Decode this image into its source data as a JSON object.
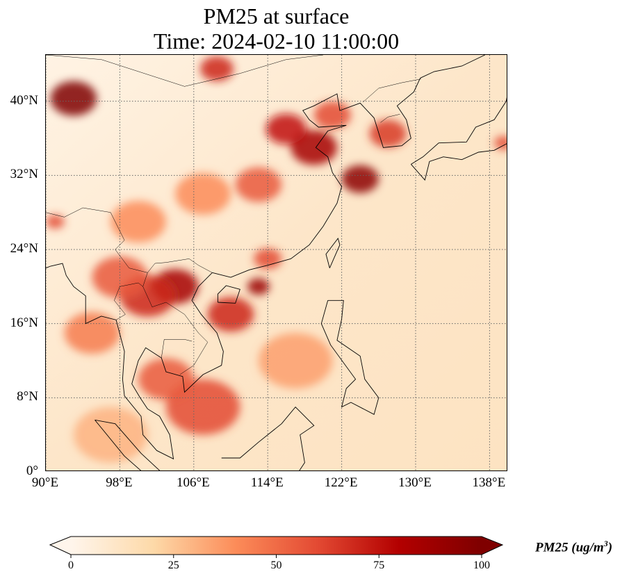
{
  "title": {
    "line1": "PM25 at surface",
    "line2": "Time: 2024-02-10 11:00:00"
  },
  "map": {
    "extent": {
      "lon": [
        90,
        140
      ],
      "lat": [
        0,
        45
      ]
    },
    "lon_ticks": [
      {
        "value": 90,
        "label": "90°E"
      },
      {
        "value": 98,
        "label": "98°E"
      },
      {
        "value": 106,
        "label": "106°E"
      },
      {
        "value": 114,
        "label": "114°E"
      },
      {
        "value": 122,
        "label": "122°E"
      },
      {
        "value": 130,
        "label": "130°E"
      },
      {
        "value": 138,
        "label": "138°E"
      }
    ],
    "lat_ticks": [
      {
        "value": 0,
        "label": "0°"
      },
      {
        "value": 8,
        "label": "8°N"
      },
      {
        "value": 16,
        "label": "16°N"
      },
      {
        "value": 24,
        "label": "24°N"
      },
      {
        "value": 32,
        "label": "32°N"
      },
      {
        "value": 40,
        "label": "40°N"
      }
    ],
    "hotspots": [
      {
        "lon": 93,
        "lat": 40.3,
        "v": 100,
        "r": 2.5
      },
      {
        "lon": 108.5,
        "lat": 43.5,
        "v": 70,
        "r": 1.8
      },
      {
        "lon": 119,
        "lat": 35,
        "v": 85,
        "r": 2.5
      },
      {
        "lon": 116,
        "lat": 37,
        "v": 75,
        "r": 2.2
      },
      {
        "lon": 124,
        "lat": 31.6,
        "v": 95,
        "r": 2
      },
      {
        "lon": 121,
        "lat": 38.5,
        "v": 60,
        "r": 2
      },
      {
        "lon": 127,
        "lat": 36.5,
        "v": 65,
        "r": 2
      },
      {
        "lon": 113,
        "lat": 31,
        "v": 55,
        "r": 2.5
      },
      {
        "lon": 104,
        "lat": 20,
        "v": 85,
        "r": 2.5
      },
      {
        "lon": 101,
        "lat": 19,
        "v": 70,
        "r": 3
      },
      {
        "lon": 98,
        "lat": 21,
        "v": 55,
        "r": 3
      },
      {
        "lon": 113,
        "lat": 20,
        "v": 90,
        "r": 1.2
      },
      {
        "lon": 110,
        "lat": 17,
        "v": 70,
        "r": 2.5
      },
      {
        "lon": 107,
        "lat": 7,
        "v": 60,
        "r": 4
      },
      {
        "lon": 103,
        "lat": 10,
        "v": 55,
        "r": 3
      },
      {
        "lon": 95,
        "lat": 15,
        "v": 45,
        "r": 3
      },
      {
        "lon": 107,
        "lat": 30,
        "v": 40,
        "r": 3
      },
      {
        "lon": 100,
        "lat": 27,
        "v": 40,
        "r": 3
      },
      {
        "lon": 91,
        "lat": 27,
        "v": 60,
        "r": 1
      },
      {
        "lon": 139.5,
        "lat": 35.5,
        "v": 60,
        "r": 1
      },
      {
        "lon": 114,
        "lat": 23,
        "v": 60,
        "r": 1.5
      },
      {
        "lon": 117,
        "lat": 12,
        "v": 35,
        "r": 4
      },
      {
        "lon": 97,
        "lat": 4,
        "v": 30,
        "r": 4
      }
    ],
    "coastlines": [
      [
        [
          108,
          21.5
        ],
        [
          110,
          21
        ],
        [
          112,
          21.8
        ],
        [
          114,
          22.3
        ],
        [
          116.5,
          23
        ],
        [
          118.5,
          24.5
        ],
        [
          120,
          26.5
        ],
        [
          121.5,
          29
        ],
        [
          122,
          30.8
        ],
        [
          121,
          32.3
        ],
        [
          120.5,
          34
        ],
        [
          119.2,
          35
        ],
        [
          120.5,
          36.8
        ],
        [
          122.5,
          37.4
        ],
        [
          119.5,
          37.2
        ],
        [
          118.5,
          38
        ],
        [
          117.8,
          39
        ],
        [
          119,
          39.5
        ],
        [
          121.5,
          40.8
        ],
        [
          121.8,
          39
        ],
        [
          124,
          39.8
        ],
        [
          125.5,
          38.2
        ],
        [
          126.5,
          35
        ],
        [
          128.5,
          35.2
        ],
        [
          129.5,
          36
        ],
        [
          129,
          38
        ],
        [
          128,
          39.5
        ],
        [
          129.8,
          41
        ],
        [
          130.5,
          42.5
        ]
      ],
      [
        [
          108,
          21.5
        ],
        [
          106.5,
          20
        ],
        [
          105.8,
          18.5
        ],
        [
          106.8,
          17
        ],
        [
          108.5,
          15
        ],
        [
          109.2,
          13
        ],
        [
          109,
          11.5
        ],
        [
          107,
          10.5
        ],
        [
          105,
          8.6
        ],
        [
          104.8,
          10.3
        ],
        [
          103,
          10.8
        ],
        [
          102.5,
          12.3
        ],
        [
          100.8,
          13.4
        ],
        [
          100,
          12
        ],
        [
          99.3,
          9.5
        ],
        [
          100.2,
          8
        ],
        [
          101,
          6.8
        ],
        [
          102.3,
          6
        ],
        [
          103.4,
          4
        ],
        [
          103.8,
          1.4
        ],
        [
          102,
          2.3
        ],
        [
          100.5,
          4
        ],
        [
          100.3,
          6
        ],
        [
          98.5,
          8.2
        ],
        [
          98.3,
          10
        ],
        [
          98.5,
          13
        ],
        [
          97.6,
          16.4
        ],
        [
          96,
          16.8
        ],
        [
          94.3,
          16
        ],
        [
          94.3,
          19
        ],
        [
          93,
          20
        ],
        [
          92.2,
          21.2
        ],
        [
          91.8,
          22.5
        ],
        [
          90.5,
          22.2
        ],
        [
          90,
          22
        ]
      ],
      [
        [
          120.7,
          22
        ],
        [
          121.8,
          24.5
        ],
        [
          121.6,
          25.2
        ],
        [
          120.3,
          23.5
        ],
        [
          120.7,
          22
        ]
      ],
      [
        [
          108.6,
          18.3
        ],
        [
          110.5,
          18.2
        ],
        [
          111,
          19.7
        ],
        [
          109.5,
          20.1
        ],
        [
          108.6,
          19.2
        ],
        [
          108.6,
          18.3
        ]
      ],
      [
        [
          120.5,
          18.5
        ],
        [
          122.2,
          18.5
        ],
        [
          122,
          16.5
        ],
        [
          121.5,
          14.2
        ],
        [
          124,
          12.5
        ],
        [
          124.5,
          10
        ],
        [
          126,
          8
        ],
        [
          125.5,
          6.2
        ],
        [
          123,
          7.5
        ],
        [
          122,
          7
        ],
        [
          122.5,
          9
        ],
        [
          123.5,
          10
        ],
        [
          120.8,
          13.7
        ],
        [
          119.8,
          16
        ],
        [
          120.5,
          18.5
        ]
      ],
      [
        [
          95.3,
          5.6
        ],
        [
          97.5,
          5.2
        ],
        [
          100.3,
          2
        ],
        [
          103,
          -0.5
        ],
        [
          104.5,
          -1.5
        ],
        [
          101,
          -0.5
        ],
        [
          98.5,
          1.7
        ],
        [
          95.3,
          5.6
        ]
      ],
      [
        [
          109,
          1.5
        ],
        [
          111,
          1.5
        ],
        [
          113,
          3.2
        ],
        [
          115.5,
          5.2
        ],
        [
          117,
          7
        ],
        [
          119,
          5
        ],
        [
          117.5,
          4
        ],
        [
          118,
          1
        ],
        [
          117,
          -0.5
        ],
        [
          114,
          -1
        ]
      ],
      [
        [
          130.5,
          42.5
        ],
        [
          132,
          43.2
        ],
        [
          135,
          43.8
        ],
        [
          137.5,
          45
        ]
      ],
      [
        [
          129.5,
          33.2
        ],
        [
          131,
          31.5
        ],
        [
          131.5,
          33.5
        ],
        [
          133,
          34
        ],
        [
          135,
          33.7
        ],
        [
          136.8,
          34.5
        ],
        [
          138.5,
          34.7
        ],
        [
          140,
          35.5
        ]
      ],
      [
        [
          129.5,
          33.2
        ],
        [
          130.8,
          34
        ],
        [
          132.5,
          35.5
        ],
        [
          135.5,
          35.6
        ],
        [
          136.5,
          37.2
        ],
        [
          138.5,
          38
        ],
        [
          139.8,
          40
        ],
        [
          140,
          41
        ]
      ]
    ],
    "borders": [
      [
        [
          90,
          28
        ],
        [
          92,
          27.5
        ],
        [
          94,
          28.5
        ],
        [
          97,
          28
        ],
        [
          98.5,
          25
        ],
        [
          97.5,
          24
        ],
        [
          99,
          22
        ],
        [
          101,
          21.5
        ],
        [
          101.8,
          22.5
        ],
        [
          103,
          22.6
        ],
        [
          105.5,
          23
        ],
        [
          106.5,
          22.3
        ],
        [
          108,
          21.5
        ]
      ],
      [
        [
          73,
          40
        ],
        [
          80,
          42
        ],
        [
          90,
          45
        ],
        [
          96,
          44.5
        ],
        [
          105,
          41.6
        ],
        [
          111,
          43
        ],
        [
          116,
          44.5
        ],
        [
          120,
          45
        ]
      ],
      [
        [
          101,
          21.5
        ],
        [
          100.5,
          20
        ],
        [
          101.5,
          17.8
        ],
        [
          103,
          18.3
        ],
        [
          105,
          17
        ],
        [
          106.5,
          15
        ],
        [
          107.5,
          14
        ],
        [
          106,
          11.5
        ],
        [
          104.5,
          10.5
        ]
      ],
      [
        [
          97.6,
          16.4
        ],
        [
          98.6,
          17
        ],
        [
          97.4,
          18.5
        ],
        [
          98,
          20
        ],
        [
          100,
          20.4
        ],
        [
          100.5,
          20
        ]
      ],
      [
        [
          102.5,
          12.3
        ],
        [
          102.8,
          14.3
        ],
        [
          105,
          14.3
        ],
        [
          105.8,
          14.1
        ]
      ],
      [
        [
          124.3,
          39.9
        ],
        [
          126,
          41.4
        ],
        [
          128.5,
          42
        ],
        [
          130.6,
          42.4
        ]
      ],
      [
        [
          126.2,
          37.7
        ],
        [
          127,
          38.3
        ],
        [
          128.3,
          38.6
        ]
      ]
    ]
  },
  "colorbar": {
    "label": "PM25 (ug/m",
    "label_sup": "3",
    "label_close": ")",
    "min": 0,
    "max": 100,
    "ticks": [
      {
        "value": 0,
        "label": "0"
      },
      {
        "value": 25,
        "label": "25"
      },
      {
        "value": 50,
        "label": "50"
      },
      {
        "value": 75,
        "label": "75"
      },
      {
        "value": 100,
        "label": "100"
      }
    ],
    "colors": [
      "#fff5eb",
      "#fdd9a8",
      "#fc8c59",
      "#e34a33",
      "#b30000",
      "#7f0000"
    ]
  }
}
